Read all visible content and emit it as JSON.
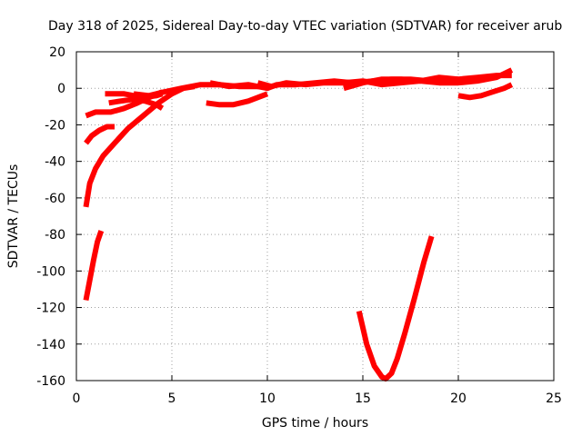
{
  "chart_data": {
    "type": "line",
    "title": "Day 318 of 2025, Sidereal Day-to-day VTEC variation (SDTVAR) for receiver arub",
    "xlabel": "GPS time / hours",
    "ylabel": "SDTVAR / TECUs",
    "xlim": [
      0,
      25
    ],
    "ylim": [
      -160,
      20
    ],
    "xticks": [
      0,
      5,
      10,
      15,
      20,
      25
    ],
    "yticks": [
      20,
      0,
      -20,
      -40,
      -60,
      -80,
      -100,
      -120,
      -140,
      -160
    ],
    "xtick_labels": [
      "0",
      "5",
      "10",
      "15",
      "20",
      "25"
    ],
    "ytick_labels": [
      "20",
      "0",
      "-20",
      "-40",
      "-60",
      "-80",
      "-100",
      "-120",
      "-140",
      "-160"
    ],
    "grid": true,
    "color": "#ff0000",
    "series": [
      {
        "x": [
          0.5,
          0.7,
          0.9,
          1.1,
          1.3
        ],
        "y": [
          -116,
          -105,
          -94,
          -84,
          -78
        ]
      },
      {
        "x": [
          0.5,
          0.7,
          1.0,
          1.4,
          2.0,
          2.7,
          3.5,
          4.3,
          5.0,
          5.6,
          6.2
        ],
        "y": [
          -65,
          -52,
          -44,
          -37,
          -30,
          -22,
          -15,
          -8,
          -3,
          0,
          1
        ]
      },
      {
        "x": [
          0.5,
          0.8,
          1.2,
          1.6,
          2.0
        ],
        "y": [
          -30,
          -26,
          -23,
          -21,
          -21
        ]
      },
      {
        "x": [
          0.5,
          1.0,
          1.8,
          2.5,
          3.2,
          3.8,
          4.5
        ],
        "y": [
          -15,
          -13,
          -13,
          -11,
          -8,
          -5,
          -2
        ]
      },
      {
        "x": [
          1.5,
          2.5,
          3.5,
          4.2,
          4.5
        ],
        "y": [
          -3,
          -3,
          -5,
          -4,
          -3
        ]
      },
      {
        "x": [
          1.7,
          2.3,
          3.0,
          3.6,
          4.2,
          4.5
        ],
        "y": [
          -8,
          -7,
          -6,
          -7,
          -9,
          -11
        ]
      },
      {
        "x": [
          3.0,
          3.8,
          4.6,
          5.5,
          6.5,
          7.5,
          8.5,
          9.5,
          10.0
        ],
        "y": [
          -3,
          -4,
          -2,
          0,
          2,
          2,
          1,
          1,
          1
        ]
      },
      {
        "x": [
          6.8,
          7.5,
          8.2,
          9.0,
          9.5,
          10.0
        ],
        "y": [
          -8,
          -9,
          -9,
          -7,
          -5,
          -3
        ]
      },
      {
        "x": [
          7.0,
          8.0,
          9.0,
          10.0,
          10.5,
          11.5,
          12.5,
          13.5,
          14.5,
          15.5,
          16.5,
          17.5,
          18.5,
          19.5,
          20.0
        ],
        "y": [
          3,
          1,
          2,
          0,
          2,
          2,
          3,
          4,
          3,
          4,
          5,
          5,
          4,
          5,
          5
        ]
      },
      {
        "x": [
          9.5,
          10.2,
          11.0,
          12.0,
          13.0,
          14.0,
          15.0,
          16.0,
          17.0,
          18.0,
          19.0,
          20.0,
          21.0,
          22.0,
          22.8
        ],
        "y": [
          3,
          1,
          3,
          2,
          3,
          3,
          4,
          2,
          3,
          4,
          3,
          3,
          4,
          6,
          10
        ]
      },
      {
        "x": [
          14.0,
          15.0,
          16.0,
          17.0,
          18.0,
          19.0,
          20.0,
          21.0,
          22.0,
          22.8
        ],
        "y": [
          0,
          3,
          5,
          5,
          4,
          6,
          5,
          6,
          7,
          7
        ]
      },
      {
        "x": [
          14.8,
          15.2,
          15.6,
          16.0,
          16.2,
          16.5,
          16.8,
          17.2,
          17.7,
          18.2,
          18.6
        ],
        "y": [
          -122,
          -140,
          -152,
          -158,
          -159,
          -156,
          -148,
          -134,
          -115,
          -95,
          -81
        ]
      },
      {
        "x": [
          20.0,
          20.6,
          21.2,
          21.8,
          22.4,
          22.8
        ],
        "y": [
          -4,
          -5,
          -4,
          -2,
          0,
          2
        ]
      }
    ]
  }
}
